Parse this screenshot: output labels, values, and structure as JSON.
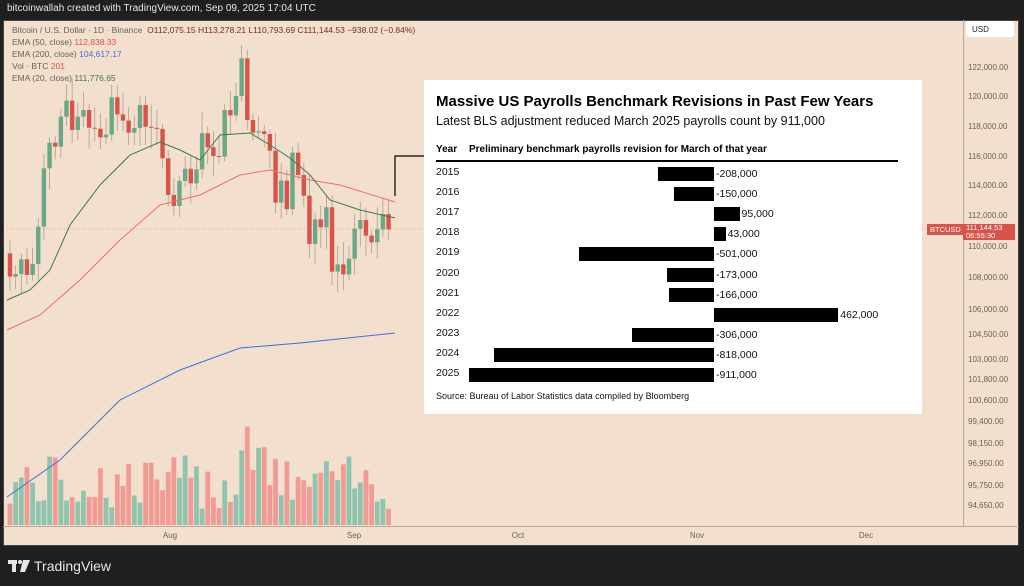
{
  "topbar": "bitcoinwallah created with TradingView.com, Sep 09, 2025 17:04 UTC",
  "legend": {
    "symbol": "Bitcoin / U.S. Dollar · 1D · Binance",
    "ohlc": "O112,075.15  H113,278.21  L110,793.69  C111,144.53  −938.02 (−0.84%)",
    "ema50_label": "EMA (50, close)",
    "ema50_value": "112,838.33",
    "ema200_label": "EMA (200, close)",
    "ema200_value": "104,617.17",
    "vol_label": "Vol · BTC",
    "vol_value": "201",
    "ema20_label": "EMA (20, close)",
    "ema20_value": "111,776.65"
  },
  "price_axis": {
    "currency": "USD",
    "labels": [
      "122,000.00",
      "120,000.00",
      "118,000.00",
      "116,000.00",
      "114,000.00",
      "112,000.00",
      "110,000.00",
      "108,000.00",
      "106,000.00",
      "104,500.00",
      "103,000.00",
      "101,800.00",
      "100,600.00",
      "99,400.00",
      "98,150.00",
      "96,950.00",
      "95,750.00",
      "94,650.00"
    ]
  },
  "time_axis": [
    "Aug",
    "Sep",
    "Oct",
    "Nov",
    "Dec"
  ],
  "last_price": {
    "symbol": "BTCUSD",
    "price": "111,144.53",
    "countdown": "06:55:30"
  },
  "colors": {
    "up": "#6aa886",
    "down": "#d9534a",
    "ema20": "#3d7a4d",
    "ema50": "#f06e6e",
    "ema200": "#3f6fe0",
    "background": "#f2dfcd"
  },
  "candles": {
    "first_open": 109560,
    "closes": [
      108000,
      108175,
      109160,
      108110,
      108850,
      111350,
      115270,
      116990,
      116720,
      118730,
      119810,
      117840,
      118730,
      119180,
      117990,
      117930,
      117350,
      117530,
      120030,
      118890,
      118470,
      117660,
      117970,
      119520,
      118060,
      117990,
      117910,
      115940,
      113480,
      112740,
      114420,
      115240,
      114260,
      115200,
      117620,
      116680,
      116090,
      116050,
      119180,
      118820,
      120120,
      122650,
      118510,
      117660,
      117750,
      117570,
      116450,
      112960,
      114440,
      112520,
      116320,
      114820,
      113430,
      110190,
      111840,
      111310,
      112650,
      108330,
      108820,
      108150,
      109200,
      111220,
      111800,
      110750,
      110300,
      111170,
      112200,
      111170
    ]
  },
  "chart_data": {
    "type": "bar",
    "orientation": "horizontal",
    "title": "Massive US Payrolls Benchmark Revisions in Past Few Years",
    "subtitle": "Latest BLS adjustment reduced March 2025 payrolls count by 911,000",
    "col_year": "Year",
    "col_value": "Preliminary benchmark payrolls revision for March of that year",
    "categories": [
      "2015",
      "2016",
      "2017",
      "2018",
      "2019",
      "2020",
      "2021",
      "2022",
      "2023",
      "2024",
      "2025"
    ],
    "values": [
      -208000,
      -150000,
      95000,
      43000,
      -501000,
      -173000,
      -166000,
      462000,
      -306000,
      -818000,
      -911000
    ],
    "labels": [
      "-208,000",
      "-150,000",
      "95,000",
      "43,000",
      "-501,000",
      "-173,000",
      "-166,000",
      "462,000",
      "-306,000",
      "-818,000",
      "-911,000"
    ],
    "source": "Source: Bureau of Labor Statistics data compiled by Bloomberg"
  },
  "brand": "TradingView"
}
